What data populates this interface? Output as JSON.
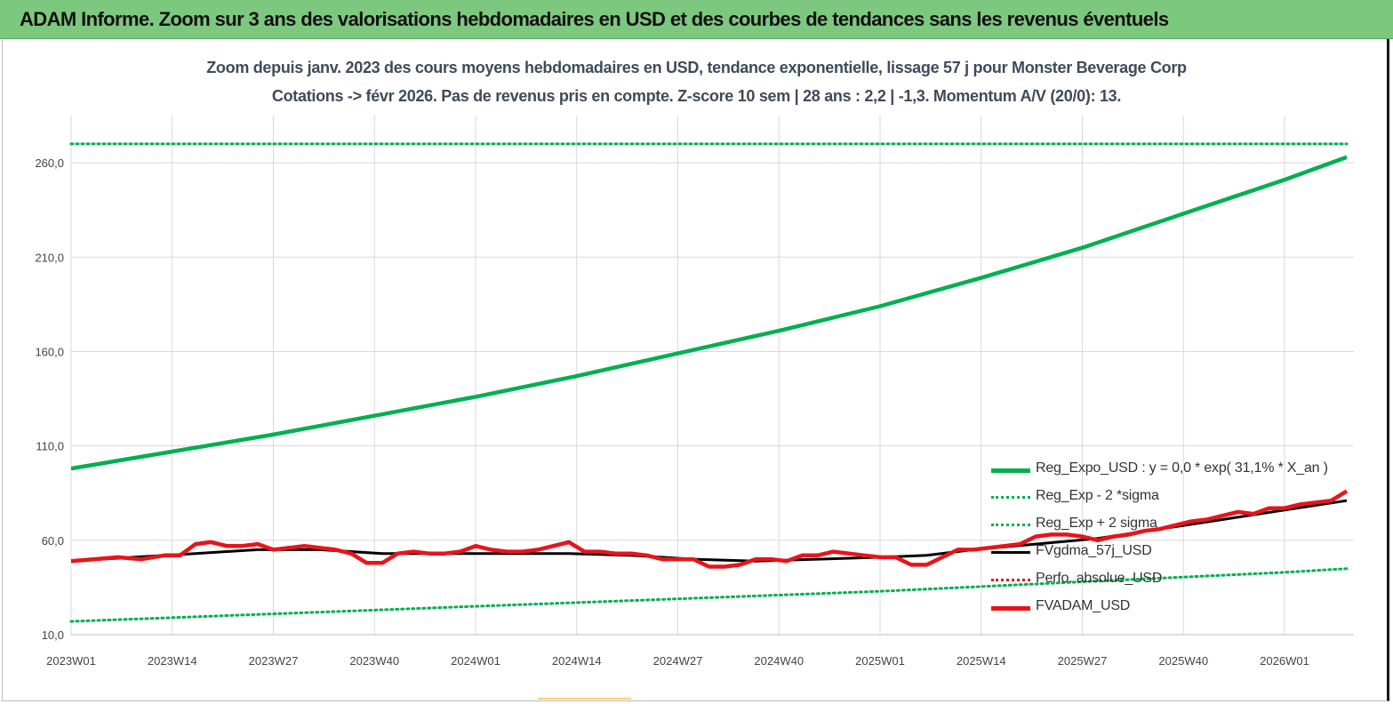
{
  "banner": {
    "title": "ADAM Informe. Zoom sur 3 ans des valorisations hebdomadaires en USD et des courbes de tendances sans les revenus éventuels"
  },
  "colors": {
    "banner_bg": "#7dc87f",
    "green": "#00b050",
    "red": "#e8141b",
    "black": "#000000",
    "dotted_red": "#e8141b"
  },
  "chart_data": {
    "type": "line",
    "title": "Zoom depuis janv. 2023 des cours moyens hebdomadaires en USD, tendance exponentielle, lissage 57 j pour Monster Beverage Corp",
    "subtitle": "Cotations -> févr 2026.  Pas de revenus pris en compte. Z-score 10 sem | 28 ans : 2,2 | -1,3. Momentum A/V (20/0): 13.",
    "xlabel": "",
    "ylabel": "",
    "ylim": [
      10,
      285
    ],
    "y_ticks": [
      "10,0",
      "60,0",
      "110,0",
      "160,0",
      "210,0",
      "260,0"
    ],
    "y_tick_values": [
      10,
      60,
      110,
      160,
      210,
      260
    ],
    "x_ticks": [
      "2023W01",
      "2023W14",
      "2023W27",
      "2023W40",
      "2024W01",
      "2024W14",
      "2024W27",
      "2024W40",
      "2025W01",
      "2025W14",
      "2025W27",
      "2025W40",
      "2026W01"
    ],
    "x_tick_weeks": [
      0,
      13,
      26,
      39,
      52,
      65,
      78,
      91,
      104,
      117,
      130,
      143,
      156
    ],
    "x_range_weeks": [
      0,
      164
    ],
    "grid": "vertical and horizontal",
    "legend_position": "bottom-right",
    "series": [
      {
        "name": "Reg_Expo_USD : y = 0,0 * exp( 31,1% *  X_an )",
        "style": "solid-thick",
        "color": "#00b050",
        "x": [
          0,
          13,
          26,
          39,
          52,
          65,
          78,
          91,
          104,
          117,
          130,
          143,
          156,
          164
        ],
        "y": [
          98,
          107,
          116,
          126,
          136,
          147,
          159,
          171,
          184,
          199,
          215,
          233,
          251,
          263
        ]
      },
      {
        "name": "Reg_Exp - 2 *sigma",
        "style": "dotted",
        "color": "#00b050",
        "x": [
          0,
          26,
          52,
          78,
          104,
          130,
          156,
          164
        ],
        "y": [
          17,
          21,
          25,
          29,
          33,
          38,
          43,
          45
        ]
      },
      {
        "name": "Reg_Exp + 2 sigma",
        "style": "dotted",
        "color": "#00b050",
        "x": [
          0,
          164
        ],
        "y": [
          270,
          270
        ]
      },
      {
        "name": "FVgdma_57j_USD",
        "style": "solid",
        "color": "#000000",
        "x": [
          0,
          8,
          16,
          24,
          32,
          40,
          52,
          64,
          72,
          80,
          88,
          96,
          104,
          110,
          116,
          124,
          132,
          140,
          148,
          156,
          164
        ],
        "y": [
          49,
          51,
          53,
          55,
          55,
          53,
          53,
          53,
          52,
          50,
          49,
          50,
          51,
          52,
          55,
          58,
          61,
          66,
          71,
          76,
          81
        ]
      },
      {
        "name": "Perfo. absolue_USD",
        "style": "dotted",
        "color": "#e8141b",
        "x": [],
        "y": []
      },
      {
        "name": "FVADAM_USD",
        "style": "solid-thick",
        "color": "#e8141b",
        "x": [
          0,
          3,
          6,
          9,
          12,
          14,
          16,
          18,
          20,
          22,
          24,
          26,
          28,
          30,
          32,
          34,
          36,
          38,
          40,
          42,
          44,
          46,
          48,
          50,
          52,
          54,
          56,
          58,
          60,
          62,
          64,
          66,
          68,
          70,
          72,
          74,
          76,
          78,
          80,
          82,
          84,
          86,
          88,
          90,
          92,
          94,
          96,
          98,
          100,
          102,
          104,
          106,
          108,
          110,
          112,
          114,
          116,
          118,
          120,
          122,
          124,
          126,
          128,
          130,
          132,
          134,
          136,
          138,
          140,
          142,
          144,
          146,
          148,
          150,
          152,
          154,
          156,
          158,
          160,
          162,
          164
        ],
        "y": [
          49,
          50,
          51,
          50,
          52,
          52,
          58,
          59,
          57,
          57,
          58,
          55,
          56,
          57,
          56,
          55,
          53,
          48,
          48,
          53,
          54,
          53,
          53,
          54,
          57,
          55,
          54,
          54,
          55,
          57,
          59,
          54,
          54,
          53,
          53,
          52,
          50,
          50,
          50,
          46,
          46,
          47,
          50,
          50,
          49,
          52,
          52,
          54,
          53,
          52,
          51,
          51,
          47,
          47,
          51,
          55,
          55,
          56,
          57,
          58,
          62,
          63,
          63,
          62,
          60,
          62,
          63,
          65,
          66,
          68,
          70,
          71,
          73,
          75,
          74,
          77,
          77,
          79,
          80,
          81,
          86
        ]
      }
    ]
  }
}
